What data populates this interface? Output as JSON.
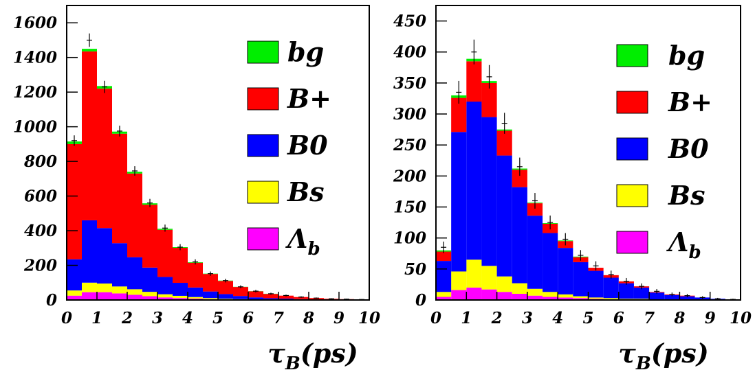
{
  "chart_data": [
    {
      "type": "stacked-histogram",
      "x": [
        0.25,
        0.75,
        1.25,
        1.75,
        2.25,
        2.75,
        3.25,
        3.75,
        4.25,
        4.75,
        5.25,
        5.75,
        6.25,
        6.75,
        7.25,
        7.75,
        8.25,
        8.75,
        9.25,
        9.75
      ],
      "xlabel_main": "τ",
      "xlabel_sub": "B",
      "xlabel_tail": "(ps)",
      "xlim": [
        0,
        10
      ],
      "ylim": [
        0,
        1700
      ],
      "x_ticks": [
        "0",
        "1",
        "2",
        "3",
        "4",
        "5",
        "6",
        "7",
        "8",
        "9",
        "10"
      ],
      "y_ticks": [
        "0",
        "200",
        "400",
        "600",
        "800",
        "1000",
        "1200",
        "1400",
        "1600"
      ],
      "y_tick_values": [
        0,
        200,
        400,
        600,
        800,
        1000,
        1200,
        1400,
        1600
      ],
      "series": [
        {
          "name": "Λ",
          "sub": "b",
          "color": "#ff00ff",
          "values": [
            25,
            45,
            45,
            38,
            30,
            22,
            15,
            11,
            8,
            5,
            3,
            2,
            1,
            1,
            1,
            0,
            0,
            0,
            0,
            0
          ]
        },
        {
          "name": "Bs",
          "sub": "",
          "color": "#ffff00",
          "values": [
            30,
            55,
            50,
            40,
            32,
            25,
            18,
            13,
            9,
            6,
            4,
            3,
            2,
            1,
            1,
            1,
            0,
            0,
            0,
            0
          ]
        },
        {
          "name": "B0",
          "sub": "",
          "color": "#0000ff",
          "values": [
            180,
            360,
            320,
            250,
            185,
            140,
            100,
            75,
            55,
            38,
            27,
            18,
            12,
            8,
            6,
            4,
            3,
            2,
            1,
            1
          ]
        },
        {
          "name": "B+",
          "sub": "",
          "color": "#ff0000",
          "values": [
            665,
            975,
            805,
            632,
            483,
            363,
            272,
            202,
            143,
            101,
            76,
            52,
            35,
            25,
            17,
            12,
            8,
            5,
            4,
            2
          ]
        },
        {
          "name": "bg",
          "sub": "",
          "color": "#00ee00",
          "values": [
            15,
            15,
            15,
            12,
            10,
            8,
            6,
            4,
            3,
            2,
            2,
            1,
            1,
            1,
            0,
            0,
            0,
            0,
            0,
            0
          ]
        }
      ],
      "data_points": [
        920,
        1500,
        1230,
        975,
        745,
        560,
        415,
        305,
        220,
        152,
        112,
        76,
        51,
        36,
        26,
        17,
        11,
        7,
        5,
        3
      ]
    },
    {
      "type": "stacked-histogram",
      "x": [
        0.25,
        0.75,
        1.25,
        1.75,
        2.25,
        2.75,
        3.25,
        3.75,
        4.25,
        4.75,
        5.25,
        5.75,
        6.25,
        6.75,
        7.25,
        7.75,
        8.25,
        8.75,
        9.25,
        9.75
      ],
      "xlabel_main": "τ",
      "xlabel_sub": "B",
      "xlabel_tail": "(ps)",
      "xlim": [
        0,
        10
      ],
      "ylim": [
        0,
        475
      ],
      "x_ticks": [
        "0",
        "1",
        "2",
        "3",
        "4",
        "5",
        "6",
        "7",
        "8",
        "9",
        "10"
      ],
      "y_ticks": [
        "0",
        "50",
        "100",
        "150",
        "200",
        "250",
        "300",
        "350",
        "400",
        "450"
      ],
      "y_tick_values": [
        0,
        50,
        100,
        150,
        200,
        250,
        300,
        350,
        400,
        450
      ],
      "series": [
        {
          "name": "Λ",
          "sub": "b",
          "color": "#ff00ff",
          "values": [
            5,
            16,
            20,
            17,
            13,
            10,
            7,
            5,
            4,
            3,
            2,
            1,
            1,
            1,
            0,
            0,
            0,
            0,
            0,
            0
          ]
        },
        {
          "name": "Bs",
          "sub": "",
          "color": "#ffff00",
          "values": [
            8,
            30,
            45,
            38,
            25,
            17,
            11,
            8,
            5,
            3,
            2,
            2,
            1,
            1,
            0,
            0,
            0,
            0,
            0,
            0
          ]
        },
        {
          "name": "B0",
          "sub": "",
          "color": "#0000ff",
          "values": [
            50,
            225,
            255,
            240,
            195,
            155,
            118,
            95,
            75,
            55,
            43,
            33,
            25,
            18,
            12,
            8,
            6,
            4,
            2,
            1
          ]
        },
        {
          "name": "B+",
          "sub": "",
          "color": "#ff0000",
          "values": [
            15,
            55,
            65,
            55,
            40,
            28,
            20,
            15,
            11,
            8,
            5,
            4,
            3,
            2,
            1,
            1,
            1,
            0,
            0,
            0
          ]
        },
        {
          "name": "bg",
          "sub": "",
          "color": "#00ee00",
          "values": [
            2,
            4,
            4,
            3,
            2,
            2,
            1,
            1,
            1,
            1,
            0,
            0,
            0,
            0,
            0,
            0,
            0,
            0,
            0,
            0
          ]
        }
      ],
      "data_points": [
        85,
        335,
        400,
        360,
        285,
        215,
        160,
        125,
        98,
        72,
        55,
        41,
        30,
        22,
        14,
        9,
        7,
        4,
        2,
        1
      ]
    }
  ]
}
